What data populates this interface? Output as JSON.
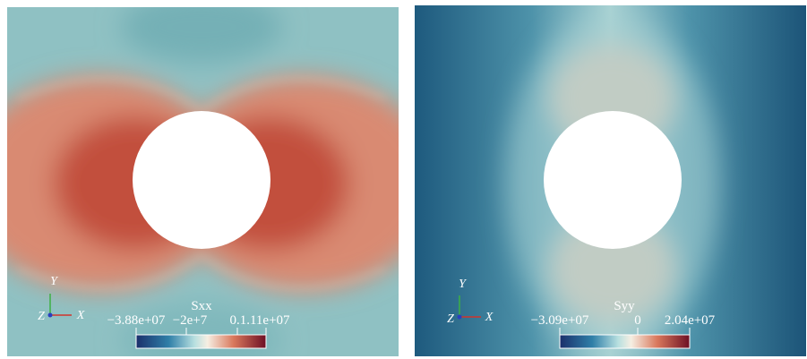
{
  "panels": [
    {
      "field": "Sxx",
      "ticks": [
        "−3.88e+07",
        "−2e+7",
        "0.1.11e+07"
      ],
      "axes": {
        "y": "Y",
        "z": "Z",
        "x": "X"
      }
    },
    {
      "field": "Syy",
      "ticks": [
        "−3.09e+07",
        "0",
        "2.04e+07"
      ],
      "axes": {
        "y": "Y",
        "z": "Z",
        "x": "X"
      }
    }
  ]
}
